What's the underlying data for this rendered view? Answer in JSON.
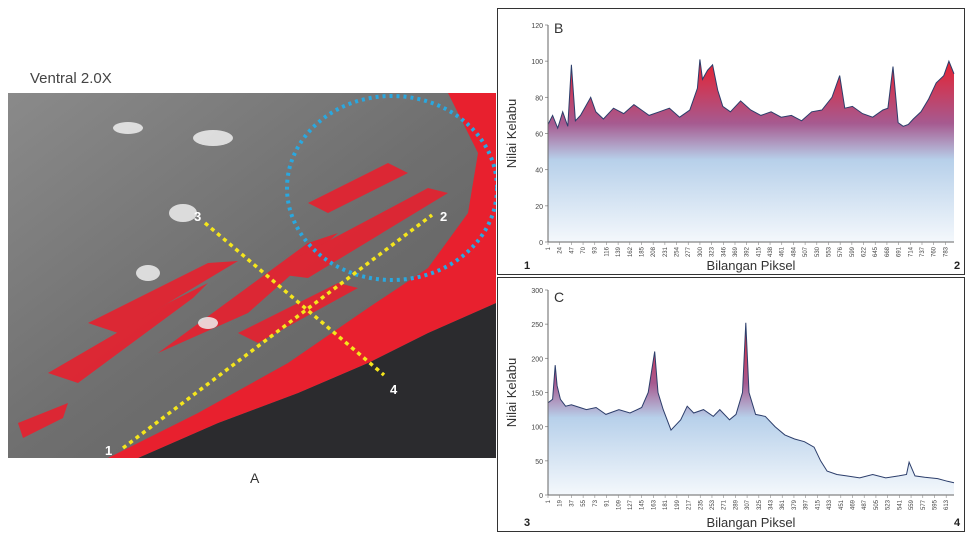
{
  "panel_a": {
    "title": "Ventral 2.0X",
    "label": "A",
    "markers": [
      "1",
      "2",
      "3",
      "4"
    ]
  },
  "chart_data": [
    {
      "type": "area",
      "panel": "B",
      "ylabel": "Nilai Kelabu",
      "xlabel": "Bilangan Piksel",
      "corner_left": "1",
      "corner_right": "2",
      "ylim": [
        0,
        120
      ],
      "yticks": [
        0,
        20,
        40,
        60,
        80,
        100,
        120
      ],
      "xlim": [
        1,
        800
      ],
      "xticks": [
        1,
        24,
        47,
        70,
        93,
        116,
        139,
        162,
        185,
        208,
        231,
        254,
        277,
        300,
        323,
        346,
        369,
        392,
        415,
        438,
        461,
        484,
        507,
        530,
        553,
        576,
        599,
        622,
        645,
        668,
        691,
        714,
        737,
        760,
        783
      ],
      "series": [
        {
          "x": [
            1,
            10,
            20,
            30,
            40,
            47,
            55,
            65,
            75,
            85,
            95,
            110,
            130,
            150,
            170,
            185,
            200,
            220,
            240,
            260,
            280,
            295,
            300,
            305,
            315,
            325,
            335,
            345,
            360,
            380,
            400,
            420,
            440,
            460,
            480,
            500,
            520,
            540,
            560,
            575,
            585,
            600,
            620,
            640,
            660,
            670,
            680,
            690,
            700,
            710,
            720,
            735,
            750,
            765,
            780,
            790,
            800
          ],
          "y": [
            65,
            70,
            63,
            72,
            64,
            98,
            67,
            70,
            75,
            80,
            72,
            68,
            74,
            71,
            76,
            73,
            70,
            72,
            74,
            69,
            73,
            85,
            101,
            90,
            95,
            98,
            84,
            75,
            72,
            78,
            73,
            70,
            72,
            69,
            70,
            67,
            72,
            73,
            80,
            92,
            74,
            75,
            71,
            69,
            73,
            74,
            97,
            66,
            64,
            65,
            68,
            72,
            79,
            88,
            92,
            100,
            93
          ]
        }
      ],
      "colors": {
        "peak": "#e8202e",
        "base": "#b7d0ea",
        "line": "#2c3e6b"
      }
    },
    {
      "type": "area",
      "panel": "C",
      "ylabel": "Nilai Kelabu",
      "xlabel": "Bilangan Piksel",
      "corner_left": "3",
      "corner_right": "4",
      "ylim": [
        0,
        300
      ],
      "yticks": [
        0,
        50,
        100,
        150,
        200,
        250,
        300
      ],
      "xlim": [
        1,
        625
      ],
      "xticks": [
        1,
        19,
        37,
        55,
        73,
        91,
        109,
        127,
        145,
        163,
        181,
        199,
        217,
        235,
        253,
        271,
        289,
        307,
        325,
        343,
        361,
        379,
        397,
        415,
        433,
        451,
        469,
        487,
        505,
        523,
        541,
        559,
        577,
        595,
        613
      ],
      "series": [
        {
          "x": [
            1,
            8,
            12,
            15,
            20,
            28,
            37,
            50,
            60,
            75,
            90,
            110,
            127,
            145,
            155,
            165,
            170,
            178,
            190,
            205,
            215,
            225,
            240,
            255,
            265,
            280,
            290,
            300,
            305,
            310,
            320,
            335,
            350,
            365,
            380,
            395,
            410,
            420,
            430,
            445,
            460,
            480,
            500,
            520,
            540,
            552,
            556,
            565,
            580,
            600,
            615,
            625
          ],
          "y": [
            135,
            140,
            190,
            160,
            140,
            130,
            132,
            128,
            125,
            128,
            118,
            125,
            120,
            128,
            150,
            210,
            150,
            125,
            95,
            110,
            130,
            120,
            125,
            115,
            125,
            110,
            118,
            150,
            252,
            150,
            118,
            115,
            100,
            88,
            82,
            78,
            70,
            50,
            35,
            30,
            28,
            25,
            30,
            25,
            28,
            30,
            48,
            28,
            26,
            24,
            20,
            18
          ]
        }
      ],
      "colors": {
        "peak": "#e8202e",
        "base": "#b7d0ea",
        "line": "#2c3e6b"
      }
    }
  ]
}
